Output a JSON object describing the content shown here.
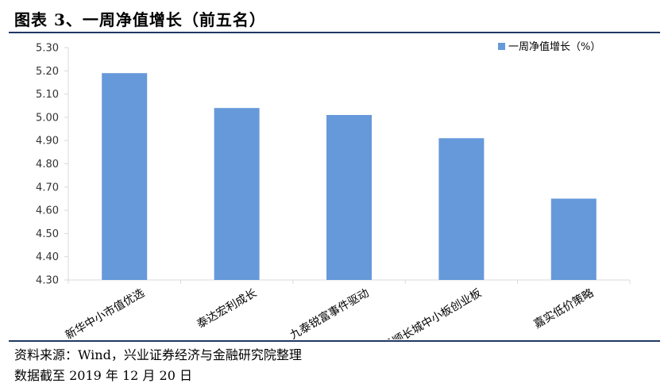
{
  "header": {
    "title": "图表 3、一周净值增长（前五名）"
  },
  "footer": {
    "source": "资料来源：Wind，兴业证券经济与金融研究院整理",
    "date": "数据截至 2019 年 12 月 20 日"
  },
  "colors": {
    "bar": "#6699d9",
    "rule": "#1f3864",
    "axis": "#d9d9d9"
  },
  "chart_data": {
    "type": "bar",
    "title": "",
    "xlabel": "",
    "ylabel": "",
    "categories": [
      "新华中小市值优选",
      "泰达宏利成长",
      "九泰锐富事件驱动",
      "景顺长城中小板创业板",
      "嘉实低价策略"
    ],
    "series": [
      {
        "name": "一周净值增长（%）",
        "values": [
          5.19,
          5.04,
          5.01,
          4.91,
          4.65
        ]
      }
    ],
    "ylim": [
      4.3,
      5.3
    ],
    "yticks": [
      "4.30",
      "4.40",
      "4.50",
      "4.60",
      "4.70",
      "4.80",
      "4.90",
      "5.00",
      "5.10",
      "5.20",
      "5.30"
    ],
    "grid": false,
    "legend_position": "top-right"
  }
}
